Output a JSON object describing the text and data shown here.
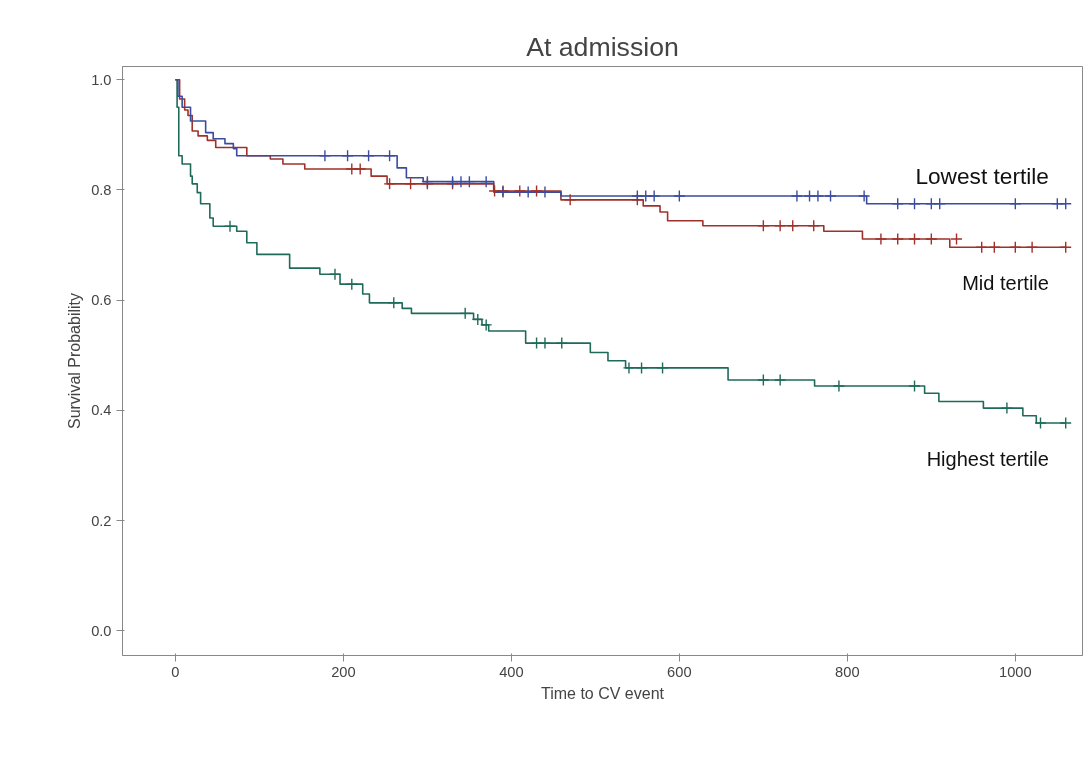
{
  "chart_data": {
    "type": "step",
    "title": "At admission",
    "xlabel": "Time to CV event",
    "ylabel": "Survival Probability",
    "xlim": [
      -63,
      1080
    ],
    "ylim": [
      -0.045,
      1.024
    ],
    "xticks": [
      0,
      200,
      400,
      600,
      800,
      1000
    ],
    "yticks": [
      {
        "value": 0,
        "label": "0.0"
      },
      {
        "value": 0.2,
        "label": "0.2"
      },
      {
        "value": 0.4,
        "label": "0.4"
      },
      {
        "value": 0.6,
        "label": "0.6"
      },
      {
        "value": 0.8,
        "label": "0.8"
      },
      {
        "value": 1,
        "label": "1.0"
      }
    ],
    "grid": false,
    "series": [
      {
        "name": "Lowest tertile",
        "color": "#3b4ca0",
        "x": [
          0,
          3,
          8,
          18,
          36,
          45,
          59,
          69,
          73,
          264,
          275,
          295,
          379,
          459,
          823,
          1060
        ],
        "values": [
          1,
          0.97,
          0.95,
          0.925,
          0.904,
          0.893,
          0.884,
          0.875,
          0.862,
          0.84,
          0.822,
          0.815,
          0.796,
          0.789,
          0.775,
          0.775
        ]
      },
      {
        "name": "Mid tertile",
        "color": "#a0302a",
        "x": [
          0,
          5,
          11,
          15,
          20,
          27,
          38,
          48,
          85,
          113,
          128,
          154,
          233,
          252,
          379,
          459,
          557,
          577,
          586,
          628,
          772,
          818,
          922,
          1060
        ],
        "values": [
          1,
          0.965,
          0.945,
          0.935,
          0.907,
          0.898,
          0.89,
          0.877,
          0.862,
          0.856,
          0.847,
          0.838,
          0.825,
          0.811,
          0.798,
          0.782,
          0.771,
          0.76,
          0.744,
          0.735,
          0.725,
          0.711,
          0.696,
          0.696
        ]
      },
      {
        "name": "Highest tertile",
        "color": "#1f6b5a",
        "x": [
          0,
          2,
          4,
          8,
          18,
          20,
          26,
          30,
          41,
          45,
          73,
          85,
          97,
          136,
          172,
          196,
          223,
          231,
          270,
          281,
          355,
          365,
          373,
          417,
          494,
          515,
          536,
          658,
          761,
          892,
          909,
          962,
          1009,
          1025,
          1060
        ],
        "values": [
          1,
          0.95,
          0.862,
          0.847,
          0.825,
          0.811,
          0.795,
          0.775,
          0.749,
          0.734,
          0.725,
          0.704,
          0.683,
          0.658,
          0.647,
          0.629,
          0.611,
          0.595,
          0.585,
          0.576,
          0.565,
          0.555,
          0.544,
          0.522,
          0.505,
          0.49,
          0.477,
          0.455,
          0.444,
          0.431,
          0.416,
          0.404,
          0.39,
          0.377,
          0.377
        ]
      },
      {
        "type": "scatter",
        "marker": "cross",
        "color": "#3b4ca0",
        "x": [
          178,
          205,
          230,
          255,
          300,
          330,
          340,
          350,
          370,
          390,
          420,
          440,
          550,
          560,
          570,
          600,
          740,
          755,
          765,
          780,
          820,
          860,
          880,
          900,
          910,
          1000,
          1050,
          1060
        ],
        "values": [
          0.862,
          0.862,
          0.862,
          0.862,
          0.815,
          0.815,
          0.815,
          0.815,
          0.815,
          0.796,
          0.796,
          0.796,
          0.789,
          0.789,
          0.789,
          0.789,
          0.789,
          0.789,
          0.789,
          0.789,
          0.789,
          0.775,
          0.775,
          0.775,
          0.775,
          0.775,
          0.775,
          0.775
        ]
      },
      {
        "type": "scatter",
        "marker": "cross",
        "color": "#a0302a",
        "x": [
          210,
          220,
          255,
          280,
          300,
          330,
          380,
          390,
          410,
          430,
          470,
          550,
          700,
          720,
          735,
          760,
          840,
          860,
          880,
          900,
          930,
          960,
          975,
          1000,
          1020,
          1060
        ],
        "values": [
          0.838,
          0.838,
          0.811,
          0.811,
          0.811,
          0.811,
          0.798,
          0.798,
          0.798,
          0.798,
          0.782,
          0.782,
          0.735,
          0.735,
          0.735,
          0.735,
          0.711,
          0.711,
          0.711,
          0.711,
          0.711,
          0.696,
          0.696,
          0.696,
          0.696,
          0.696
        ]
      },
      {
        "type": "scatter",
        "marker": "cross",
        "color": "#1f6b5a",
        "x": [
          65,
          190,
          210,
          260,
          345,
          360,
          370,
          430,
          440,
          460,
          540,
          555,
          580,
          700,
          720,
          790,
          880,
          990,
          1030,
          1060
        ],
        "values": [
          0.734,
          0.647,
          0.629,
          0.595,
          0.576,
          0.565,
          0.555,
          0.522,
          0.522,
          0.522,
          0.477,
          0.477,
          0.477,
          0.455,
          0.455,
          0.444,
          0.444,
          0.404,
          0.377,
          0.377
        ]
      }
    ]
  }
}
